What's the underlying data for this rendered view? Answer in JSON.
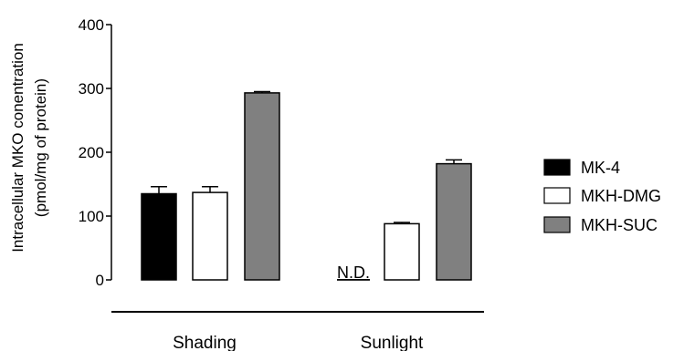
{
  "chart_data": {
    "type": "bar",
    "categories": [
      "Shading",
      "Sunlight"
    ],
    "series": [
      {
        "name": "MK-4",
        "values": [
          135,
          null
        ],
        "errors": [
          11,
          null
        ],
        "color": "#000000"
      },
      {
        "name": "MKH-DMG",
        "values": [
          137,
          88
        ],
        "errors": [
          9,
          2
        ],
        "color": "#ffffff"
      },
      {
        "name": "MKH-SUC",
        "values": [
          293,
          182
        ],
        "errors": [
          2,
          6
        ],
        "color": "#808080"
      }
    ],
    "ylabel_line1": "Intracellular MKO conentration",
    "ylabel_line2": "(pmol/mg of protein)",
    "ylim": [
      0,
      400
    ],
    "yticks": [
      "0",
      "100",
      "200",
      "300",
      "400"
    ],
    "annotation": "N.D.",
    "legend_position": "right",
    "grid": false
  }
}
